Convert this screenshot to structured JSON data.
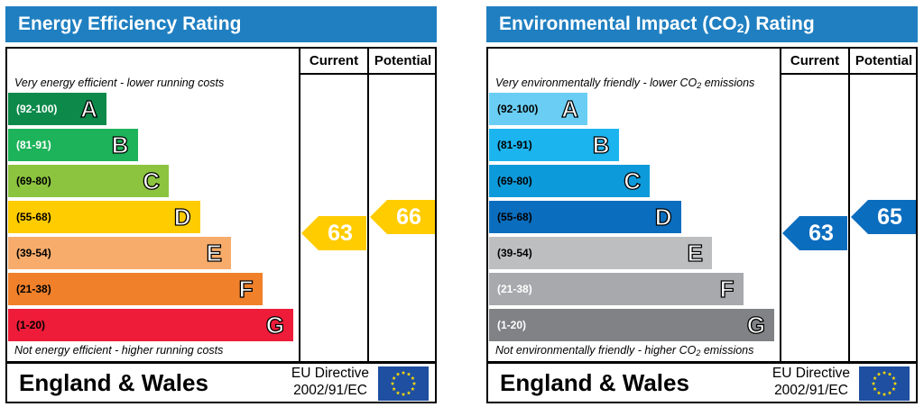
{
  "chart_data": [
    {
      "type": "bar",
      "title": "Energy Efficiency Rating",
      "title_color": "#1F7FC1",
      "columns": [
        "Current",
        "Potential"
      ],
      "caption_top": "Very energy efficient - lower running costs",
      "caption_bottom": "Not energy efficient - higher running costs",
      "bands": [
        {
          "range": "(92-100)",
          "letter": "A",
          "relative_length": 1,
          "color": "#0D8A4A",
          "range_color": "#ffffff"
        },
        {
          "range": "(81-91)",
          "letter": "B",
          "relative_length": 2,
          "color": "#1DB35A",
          "range_color": "#ffffff"
        },
        {
          "range": "(69-80)",
          "letter": "C",
          "relative_length": 3,
          "color": "#8CC43F",
          "range_color": "#000000"
        },
        {
          "range": "(55-68)",
          "letter": "D",
          "relative_length": 4,
          "color": "#FFCC00",
          "range_color": "#000000"
        },
        {
          "range": "(39-54)",
          "letter": "E",
          "relative_length": 5,
          "color": "#F7AC6B",
          "range_color": "#000000"
        },
        {
          "range": "(21-38)",
          "letter": "F",
          "relative_length": 6,
          "color": "#F0802A",
          "range_color": "#000000"
        },
        {
          "range": "(1-20)",
          "letter": "G",
          "relative_length": 7,
          "color": "#EE1C39",
          "range_color": "#000000"
        }
      ],
      "current": {
        "value": 63,
        "color": "#FFCC00"
      },
      "potential": {
        "value": 66,
        "color": "#FFCC00"
      }
    },
    {
      "type": "bar",
      "title_parts": [
        "Environmental Impact (CO",
        "2",
        ") Rating"
      ],
      "title_color": "#1F7FC1",
      "columns": [
        "Current",
        "Potential"
      ],
      "caption_top_parts": [
        "Very environmentally friendly - lower CO",
        "2",
        " emissions"
      ],
      "caption_bottom_parts": [
        "Not environmentally friendly - higher CO",
        "2",
        " emissions"
      ],
      "bands": [
        {
          "range": "(92-100)",
          "letter": "A",
          "relative_length": 1,
          "color": "#6ACEF4",
          "range_color": "#000000"
        },
        {
          "range": "(81-91)",
          "letter": "B",
          "relative_length": 2,
          "color": "#1CB4EE",
          "range_color": "#000000"
        },
        {
          "range": "(69-80)",
          "letter": "C",
          "relative_length": 3,
          "color": "#0D9ADA",
          "range_color": "#000000"
        },
        {
          "range": "(55-68)",
          "letter": "D",
          "relative_length": 4,
          "color": "#0B6DBE",
          "range_color": "#000000"
        },
        {
          "range": "(39-54)",
          "letter": "E",
          "relative_length": 5,
          "color": "#BCBEC0",
          "range_color": "#000000"
        },
        {
          "range": "(21-38)",
          "letter": "F",
          "relative_length": 6,
          "color": "#A7A9AC",
          "range_color": "#ffffff"
        },
        {
          "range": "(1-20)",
          "letter": "G",
          "relative_length": 7,
          "color": "#808285",
          "range_color": "#ffffff"
        }
      ],
      "current": {
        "value": 63,
        "color": "#0B6DBE"
      },
      "potential": {
        "value": 65,
        "color": "#0B6DBE"
      }
    }
  ],
  "footer": {
    "region": "England & Wales",
    "directive_line1": "EU Directive",
    "directive_line2": "2002/91/EC",
    "flag_blue": "#1E4FA0",
    "star_color": "#FFDD00"
  }
}
